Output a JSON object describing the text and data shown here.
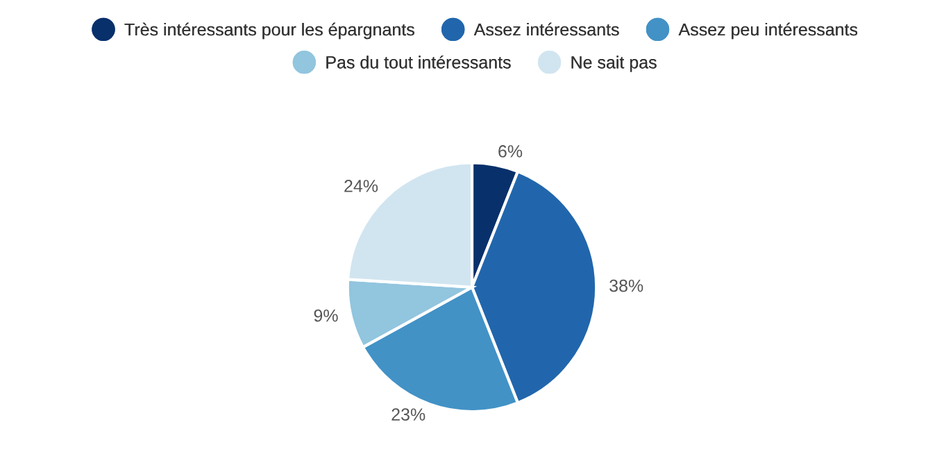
{
  "chart_data": {
    "type": "pie",
    "categories": [
      "Très intéressants pour les épargnants",
      "Assez intéressants",
      "Assez peu intéressants",
      "Pas du tout intéressants",
      "Ne sait pas"
    ],
    "values": [
      6,
      38,
      23,
      9,
      24
    ],
    "colors": [
      "#08306b",
      "#2166ac",
      "#4292c6",
      "#92c5de",
      "#d1e5f0"
    ],
    "value_labels": [
      "6%",
      "38%",
      "23%",
      "9%",
      "24%"
    ],
    "legend": "top"
  }
}
